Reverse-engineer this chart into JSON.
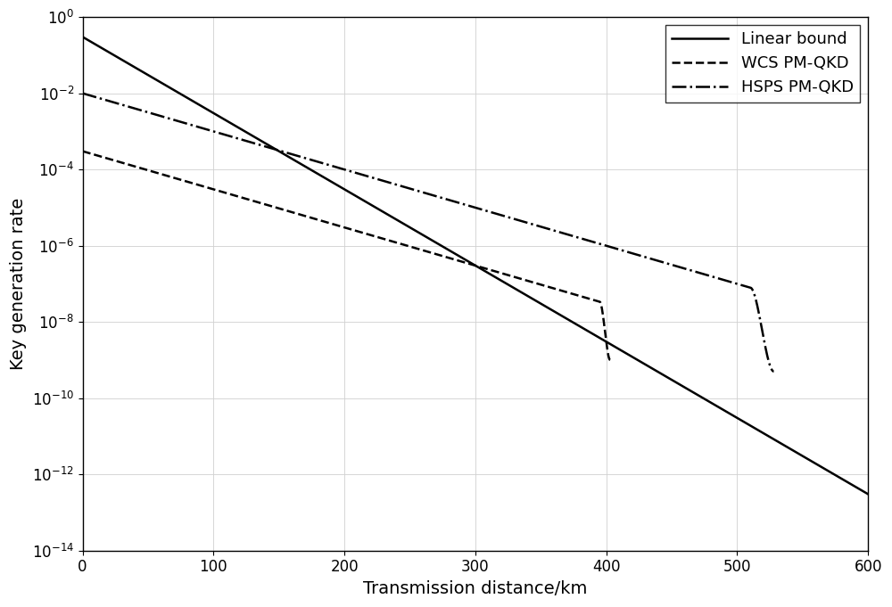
{
  "title": "",
  "xlabel": "Transmission distance/km",
  "ylabel": "Key generation rate",
  "xlim": [
    0,
    600
  ],
  "ylim_log": [
    -14,
    0
  ],
  "x_ticks": [
    0,
    100,
    200,
    300,
    400,
    500,
    600
  ],
  "linear_bound": {
    "label": "Linear bound",
    "linestyle": "solid",
    "color": "#000000",
    "linewidth": 1.8,
    "y0_log10": -0.52,
    "slope": -0.02
  },
  "wcs": {
    "label": "WCS PM-QKD",
    "linestyle": "dashed",
    "color": "#000000",
    "linewidth": 1.8,
    "y0_log10": -3.52,
    "slope": -0.01,
    "x_cutoff": 395,
    "x_end": 403,
    "y_end_log10": -9.0
  },
  "hsps": {
    "label": "HSPS PM-QKD",
    "linestyle": "dashdot",
    "color": "#000000",
    "linewidth": 1.8,
    "y0_log10": -2.0,
    "slope": -0.01,
    "x_cutoff": 510,
    "x_end": 528,
    "y_end_log10": -9.3
  },
  "legend_loc": "upper right",
  "legend_fontsize": 13,
  "tick_fontsize": 12,
  "label_fontsize": 14,
  "grid_color": "#d0d0d0",
  "background_color": "#ffffff"
}
